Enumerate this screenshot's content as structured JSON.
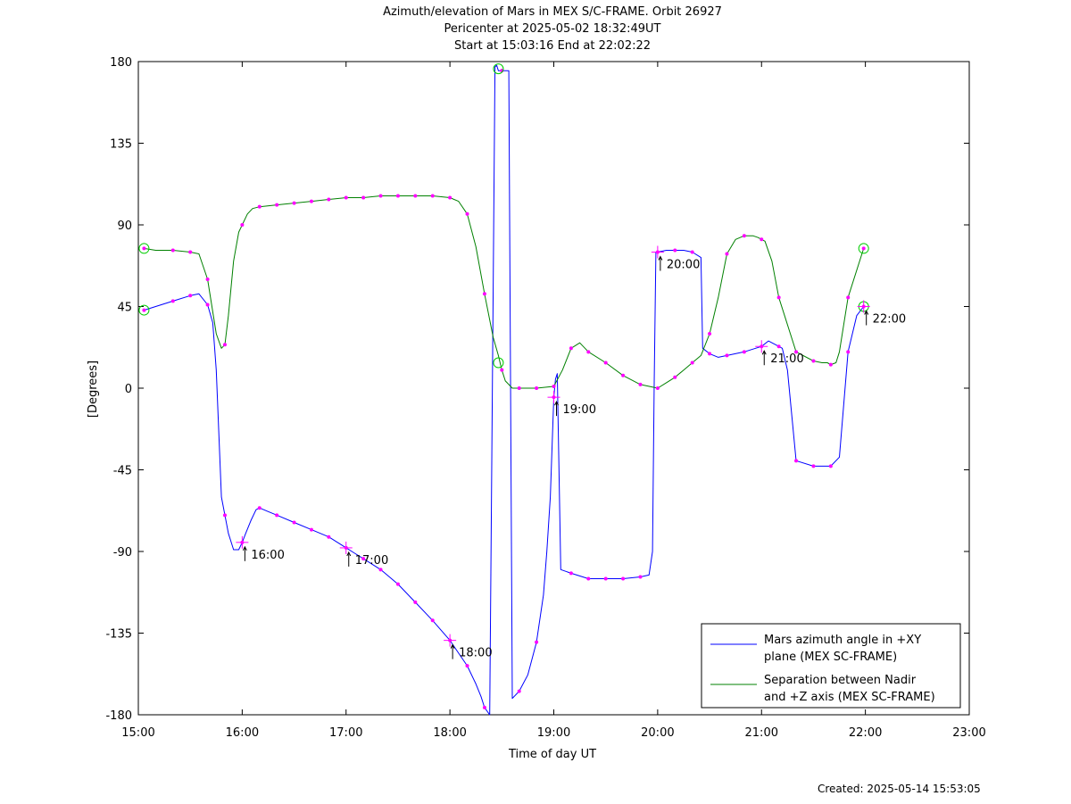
{
  "chart_data": {
    "type": "line",
    "title": [
      "Azimuth/elevation of Mars in MEX S/C-FRAME.  Orbit 26927",
      "Pericenter at 2025-05-02 18:32:49UT",
      "Start at 15:03:16 End at 22:02:22"
    ],
    "xlabel": "Time of day UT",
    "ylabel": "[Degrees]",
    "xlim": [
      0,
      480
    ],
    "ylim": [
      -180,
      180
    ],
    "x_ticks": [
      0,
      60,
      120,
      180,
      240,
      300,
      360,
      420,
      480
    ],
    "x_tick_labels": [
      "15:00",
      "16:00",
      "17:00",
      "18:00",
      "19:00",
      "20:00",
      "21:00",
      "22:00",
      "23:00"
    ],
    "y_ticks": [
      180,
      135,
      90,
      45,
      0,
      -45,
      -90,
      -135,
      -180
    ],
    "y_tick_labels": [
      "180",
      "135",
      "90",
      "45",
      "0",
      "-45",
      "-90",
      "-135",
      "-180"
    ],
    "grid": false,
    "legend_position": "bottom-right",
    "series": [
      {
        "name": "Mars azimuth angle in +XY\nplane (MEX SC-FRAME)",
        "color": "#0000ff",
        "x": [
          3.3,
          10,
          20,
          30,
          35,
          40,
          43,
          45,
          48,
          52,
          55,
          58,
          60,
          62,
          65,
          68,
          70,
          75,
          80,
          90,
          100,
          110,
          115,
          120,
          125,
          130,
          140,
          150,
          160,
          170,
          180,
          190,
          195,
          198,
          200,
          203,
          206,
          207,
          208,
          210,
          212,
          214,
          216,
          220,
          225,
          230,
          234,
          236,
          238,
          240,
          241,
          242,
          244,
          250,
          260,
          270,
          280,
          290,
          295,
          297,
          298,
          299,
          300,
          305,
          310,
          315,
          320,
          325,
          326,
          330,
          335,
          340,
          350,
          360,
          364,
          368,
          372,
          375,
          380,
          390,
          398,
          400,
          405,
          410,
          415,
          419
        ],
        "y": [
          43,
          45,
          48,
          51,
          52,
          46,
          36,
          10,
          -60,
          -80,
          -89,
          -89,
          -85,
          -80,
          -73,
          -67,
          -66,
          -68,
          -70,
          -74,
          -78,
          -82,
          -85,
          -88,
          -91,
          -94,
          -100,
          -108,
          -118,
          -128,
          -139,
          -153,
          -163,
          -170,
          -176,
          -180,
          177,
          178,
          175,
          175,
          175,
          175,
          -171,
          -167,
          -158,
          -140,
          -114,
          -90,
          -60,
          -5,
          5,
          8,
          -100,
          -102,
          -105,
          -105,
          -105,
          -104,
          -103,
          -90,
          3,
          75,
          75,
          76,
          76,
          76,
          75,
          72,
          22,
          19,
          17,
          18,
          20,
          23,
          26,
          24,
          22,
          10,
          -40,
          -43,
          -43,
          -43,
          -38,
          20,
          40,
          45
        ]
      },
      {
        "name": "Separation between Nadir\nand +Z axis (MEX SC-FRAME)",
        "color": "#008000",
        "x": [
          3.3,
          10,
          20,
          30,
          35,
          40,
          45,
          48,
          50,
          52,
          55,
          58,
          60,
          63,
          66,
          70,
          80,
          90,
          100,
          110,
          120,
          130,
          140,
          150,
          160,
          170,
          180,
          185,
          190,
          195,
          200,
          205,
          208,
          210,
          212,
          214,
          216,
          220,
          225,
          230,
          240,
          245,
          250,
          255,
          260,
          270,
          280,
          290,
          300,
          305,
          310,
          315,
          320,
          325,
          330,
          335,
          340,
          345,
          350,
          355,
          358,
          360,
          362,
          366,
          370,
          380,
          390,
          395,
          398,
          400,
          403,
          405,
          410,
          419
        ],
        "y": [
          77,
          76,
          76,
          75,
          74,
          60,
          30,
          22,
          24,
          40,
          70,
          86,
          90,
          96,
          99,
          100,
          101,
          102,
          103,
          104,
          105,
          105,
          106,
          106,
          106,
          106,
          105,
          103,
          96,
          78,
          52,
          28,
          18,
          10,
          4,
          2,
          0,
          0,
          0,
          0,
          1,
          10,
          22,
          25,
          20,
          14,
          7,
          2,
          0,
          3,
          6,
          10,
          14,
          18,
          30,
          50,
          74,
          82,
          84,
          84,
          83,
          82,
          81,
          70,
          50,
          20,
          15,
          14,
          14,
          13,
          14,
          20,
          50,
          77
        ]
      }
    ],
    "markers_times": [
      3.3,
      20,
      30,
      40,
      50,
      60,
      70,
      80,
      90,
      100,
      110,
      120,
      130,
      140,
      150,
      160,
      170,
      180,
      190,
      200,
      210,
      220,
      230,
      240,
      250,
      260,
      270,
      280,
      290,
      300,
      310,
      320,
      330,
      340,
      350,
      360,
      370,
      380,
      390,
      400,
      410,
      419
    ],
    "hour_labels": [
      {
        "time": "16:00",
        "x": 60,
        "series": 0
      },
      {
        "time": "17:00",
        "x": 120,
        "series": 0
      },
      {
        "time": "18:00",
        "x": 180,
        "series": 0
      },
      {
        "time": "19:00",
        "x": 240,
        "series": 0
      },
      {
        "time": "20:00",
        "x": 300,
        "series": 0
      },
      {
        "time": "21:00",
        "x": 360,
        "series": 0
      },
      {
        "time": "22:00",
        "x": 419,
        "series": 0
      }
    ],
    "start_end_points": [
      {
        "x": 3.3,
        "y": 77
      },
      {
        "x": 3.3,
        "y": 43
      },
      {
        "x": 208,
        "y": 176
      },
      {
        "x": 208,
        "y": 14
      },
      {
        "x": 419,
        "y": 77
      },
      {
        "x": 419,
        "y": 45
      }
    ]
  },
  "footer": "Created: 2025-05-14 15:53:05"
}
